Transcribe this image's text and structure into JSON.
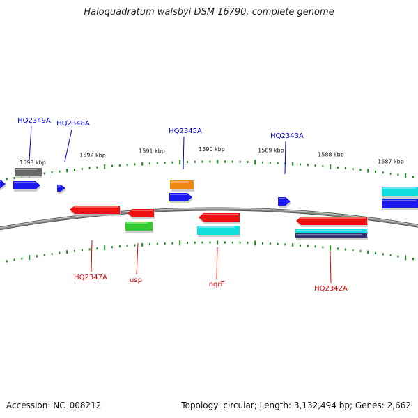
{
  "title": "Haloquadratum walsbyi DSM 16790, complete genome",
  "footer": {
    "accession": "Accession: NC_008212",
    "summary": "Topology: circular; Length: 3,132,494 bp; Genes: 2,662"
  },
  "colors": {
    "background": "#ffffff",
    "backbone": "#8a8a8a",
    "tick": "#1a8a1a",
    "label_forward": "#0000cc",
    "label_reverse": "#dd0000",
    "feature_blue": "#1a1aee",
    "feature_red": "#ee1111",
    "feature_green": "#33cc33",
    "feature_orange": "#ee8811",
    "feature_cyan": "#11dddd",
    "feature_gray": "#6a6a6a",
    "feature_navy": "#333377"
  },
  "scale": {
    "unit": "kbp",
    "marks": [
      "1593 kbp",
      "1592 kbp",
      "1591 kbp",
      "1590 kbp",
      "1589 kbp",
      "1588 kbp",
      "1587 kbp"
    ]
  },
  "features": {
    "forward": [
      {
        "label": "HQ2349A",
        "shape": "box",
        "color": "gray"
      },
      {
        "label": "",
        "shape": "arrow",
        "color": "blue"
      },
      {
        "label": "",
        "shape": "arrow",
        "color": "blue"
      },
      {
        "label": "HQ2348A",
        "shape": "arrow",
        "color": "blue"
      },
      {
        "label": "",
        "shape": "box",
        "color": "orange"
      },
      {
        "label": "HQ2345A",
        "shape": "arrow",
        "color": "blue"
      },
      {
        "label": "HQ2343A",
        "shape": "arrow",
        "color": "blue"
      },
      {
        "label": "",
        "shape": "box",
        "color": "cyan"
      },
      {
        "label": "",
        "shape": "box",
        "color": "blue"
      }
    ],
    "reverse": [
      {
        "label": "HQ2347A",
        "shape": "arrow",
        "color": "red"
      },
      {
        "label": "",
        "shape": "arrow",
        "color": "red"
      },
      {
        "label": "usp",
        "shape": "box",
        "color": "green"
      },
      {
        "label": "nqrF",
        "shape": "arrow",
        "color": "red"
      },
      {
        "label": "",
        "shape": "box",
        "color": "cyan"
      },
      {
        "label": "HQ2342A",
        "shape": "arrow",
        "color": "red"
      },
      {
        "label": "",
        "shape": "box",
        "color": "cyan"
      },
      {
        "label": "",
        "shape": "box",
        "color": "navy"
      }
    ]
  }
}
